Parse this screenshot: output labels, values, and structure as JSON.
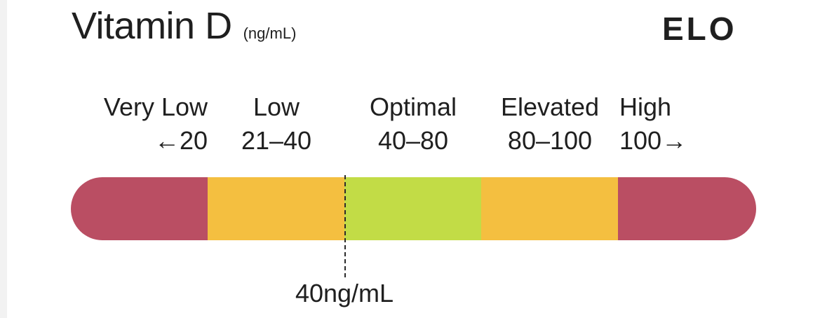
{
  "header": {
    "title": "Vitamin D",
    "unit": "(ng/mL)",
    "logo": "ELO"
  },
  "chart_data": {
    "type": "bar",
    "orientation": "horizontal-range",
    "title": "Vitamin D",
    "unit": "(ng/mL)",
    "zones": [
      {
        "name": "Very Low",
        "range": "←20",
        "min": 0,
        "max": 20,
        "color": "#ba4e63"
      },
      {
        "name": "Low",
        "range": "21–40",
        "min": 21,
        "max": 40,
        "color": "#f4bf40"
      },
      {
        "name": "Optimal",
        "range": "40–80",
        "min": 40,
        "max": 80,
        "color": "#c2dc46"
      },
      {
        "name": "Elevated",
        "range": "80–100",
        "min": 80,
        "max": 100,
        "color": "#f4bf40"
      },
      {
        "name": "High",
        "range": "100→",
        "min": 100,
        "max": null,
        "color": "#ba4e63"
      }
    ],
    "marker": {
      "value": 40,
      "label": "40ng/mL"
    }
  }
}
